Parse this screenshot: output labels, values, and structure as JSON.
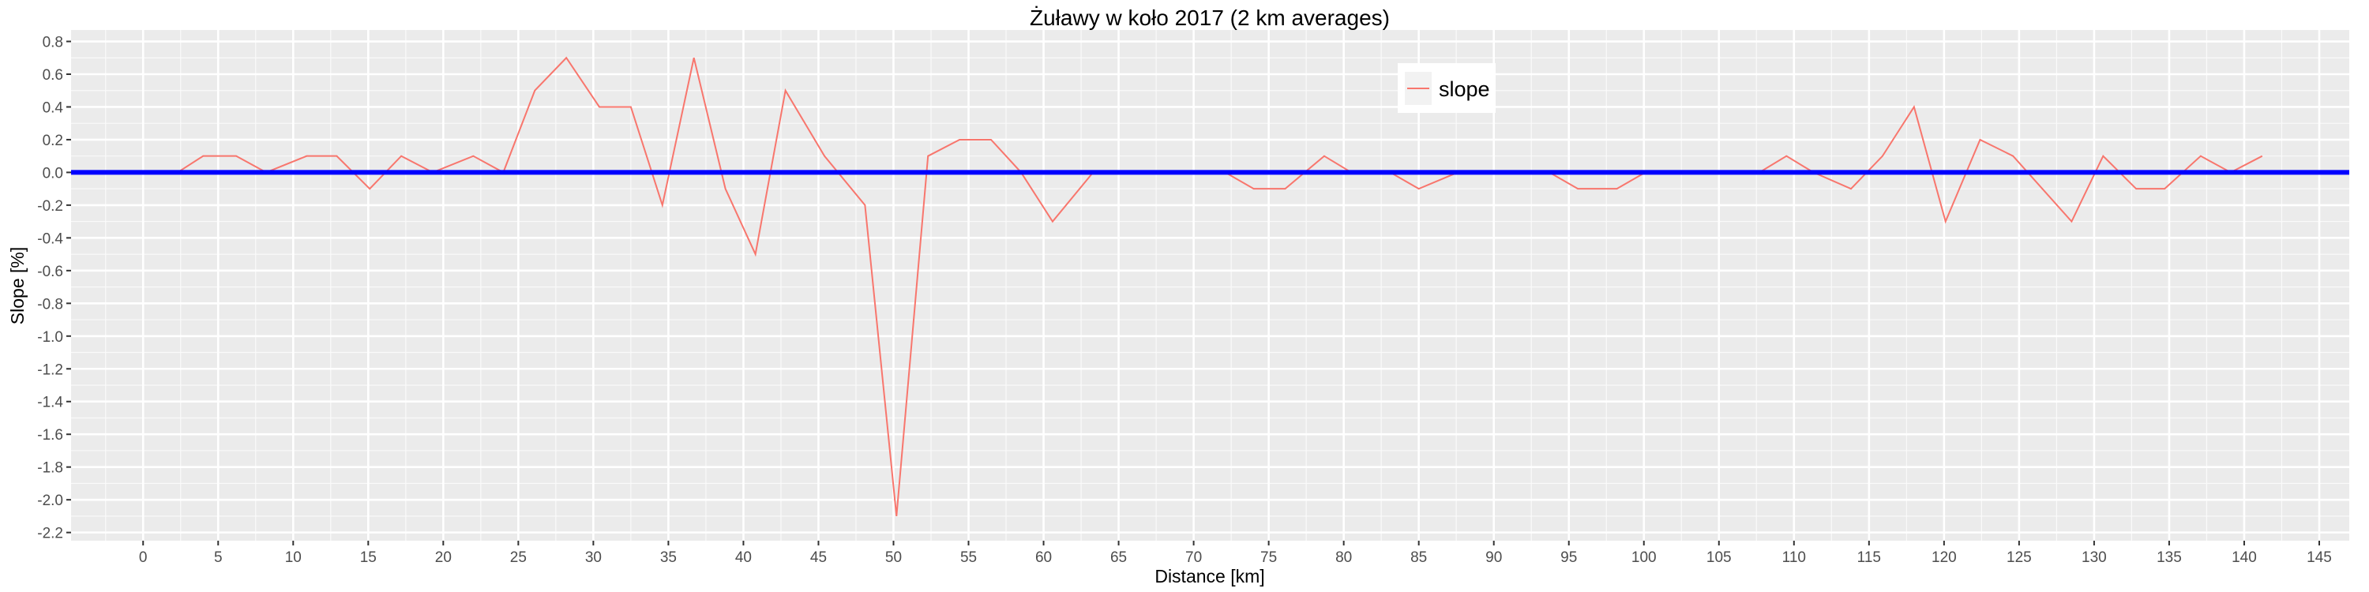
{
  "chart_data": {
    "type": "line",
    "title": "Żuławy w koło 2017 (2 km averages)",
    "xlabel": "Distance [km]",
    "ylabel": "Slope [%]",
    "xlim": [
      -4.8,
      147
    ],
    "ylim": [
      -2.25,
      0.87
    ],
    "x_ticks": [
      0,
      5,
      10,
      15,
      20,
      25,
      30,
      35,
      40,
      45,
      50,
      55,
      60,
      65,
      70,
      75,
      80,
      85,
      90,
      95,
      100,
      105,
      110,
      115,
      120,
      125,
      130,
      135,
      140,
      145
    ],
    "y_ticks": [
      0.8,
      0.6,
      0.4,
      0.2,
      0.0,
      -0.2,
      -0.4,
      -0.6,
      -0.8,
      -1.0,
      -1.2,
      -1.4,
      -1.6,
      -1.8,
      -2.0,
      -2.2
    ],
    "y_tick_labels": [
      "0.8",
      "0.6",
      "0.4",
      "0.2",
      "0.0",
      "-0.2",
      "-0.4",
      "-0.6",
      "-0.8",
      "-1.0",
      "-1.2",
      "-1.4",
      "-1.6",
      "-1.8",
      "-2.0",
      "-2.2"
    ],
    "grid": true,
    "panel_background": "#EBEBEB",
    "legend": {
      "position": "top-right",
      "entries": [
        "slope"
      ]
    },
    "series": [
      {
        "name": "slope",
        "color": "#F8766D",
        "x": [
          2.3,
          4.0,
          6.2,
          8.2,
          10.9,
          12.9,
          15.1,
          17.2,
          19.3,
          22.0,
          24.0,
          26.1,
          28.2,
          30.4,
          32.5,
          34.6,
          36.7,
          38.8,
          40.8,
          42.8,
          45.4,
          48.1,
          50.2,
          52.3,
          54.4,
          56.5,
          58.5,
          60.6,
          63.3,
          65.4,
          67.5,
          69.6,
          72.1,
          74.0,
          76.1,
          78.7,
          80.5,
          83.1,
          85.0,
          87.6,
          89.7,
          91.7,
          93.7,
          95.6,
          98.2,
          100.1,
          102.0,
          104.0,
          105.8,
          107.7,
          109.5,
          111.3,
          113.8,
          115.9,
          118.0,
          120.1,
          122.4,
          124.6,
          128.5,
          130.6,
          132.8,
          134.7,
          137.1,
          139.1,
          141.2
        ],
        "y": [
          0,
          0.1,
          0.1,
          0,
          0.1,
          0.1,
          -0.1,
          0.1,
          0,
          0.1,
          0,
          0.5,
          0.7,
          0.4,
          0.4,
          -0.2,
          0.7,
          -0.1,
          -0.5,
          0.5,
          0.1,
          -0.2,
          -2.1,
          0.1,
          0.2,
          0.2,
          0,
          -0.3,
          0,
          0,
          0,
          0,
          0,
          -0.1,
          -0.1,
          0.1,
          0,
          0,
          -0.1,
          0,
          0,
          0,
          0,
          -0.1,
          -0.1,
          0,
          0,
          0,
          0,
          0,
          0.1,
          0,
          -0.1,
          0.1,
          0.4,
          -0.3,
          0.2,
          0.1,
          -0.3,
          0.1,
          -0.1,
          -0.1,
          0.1,
          0,
          0.1
        ]
      }
    ],
    "reference_line": {
      "y": 0,
      "color": "#0000FF"
    }
  }
}
